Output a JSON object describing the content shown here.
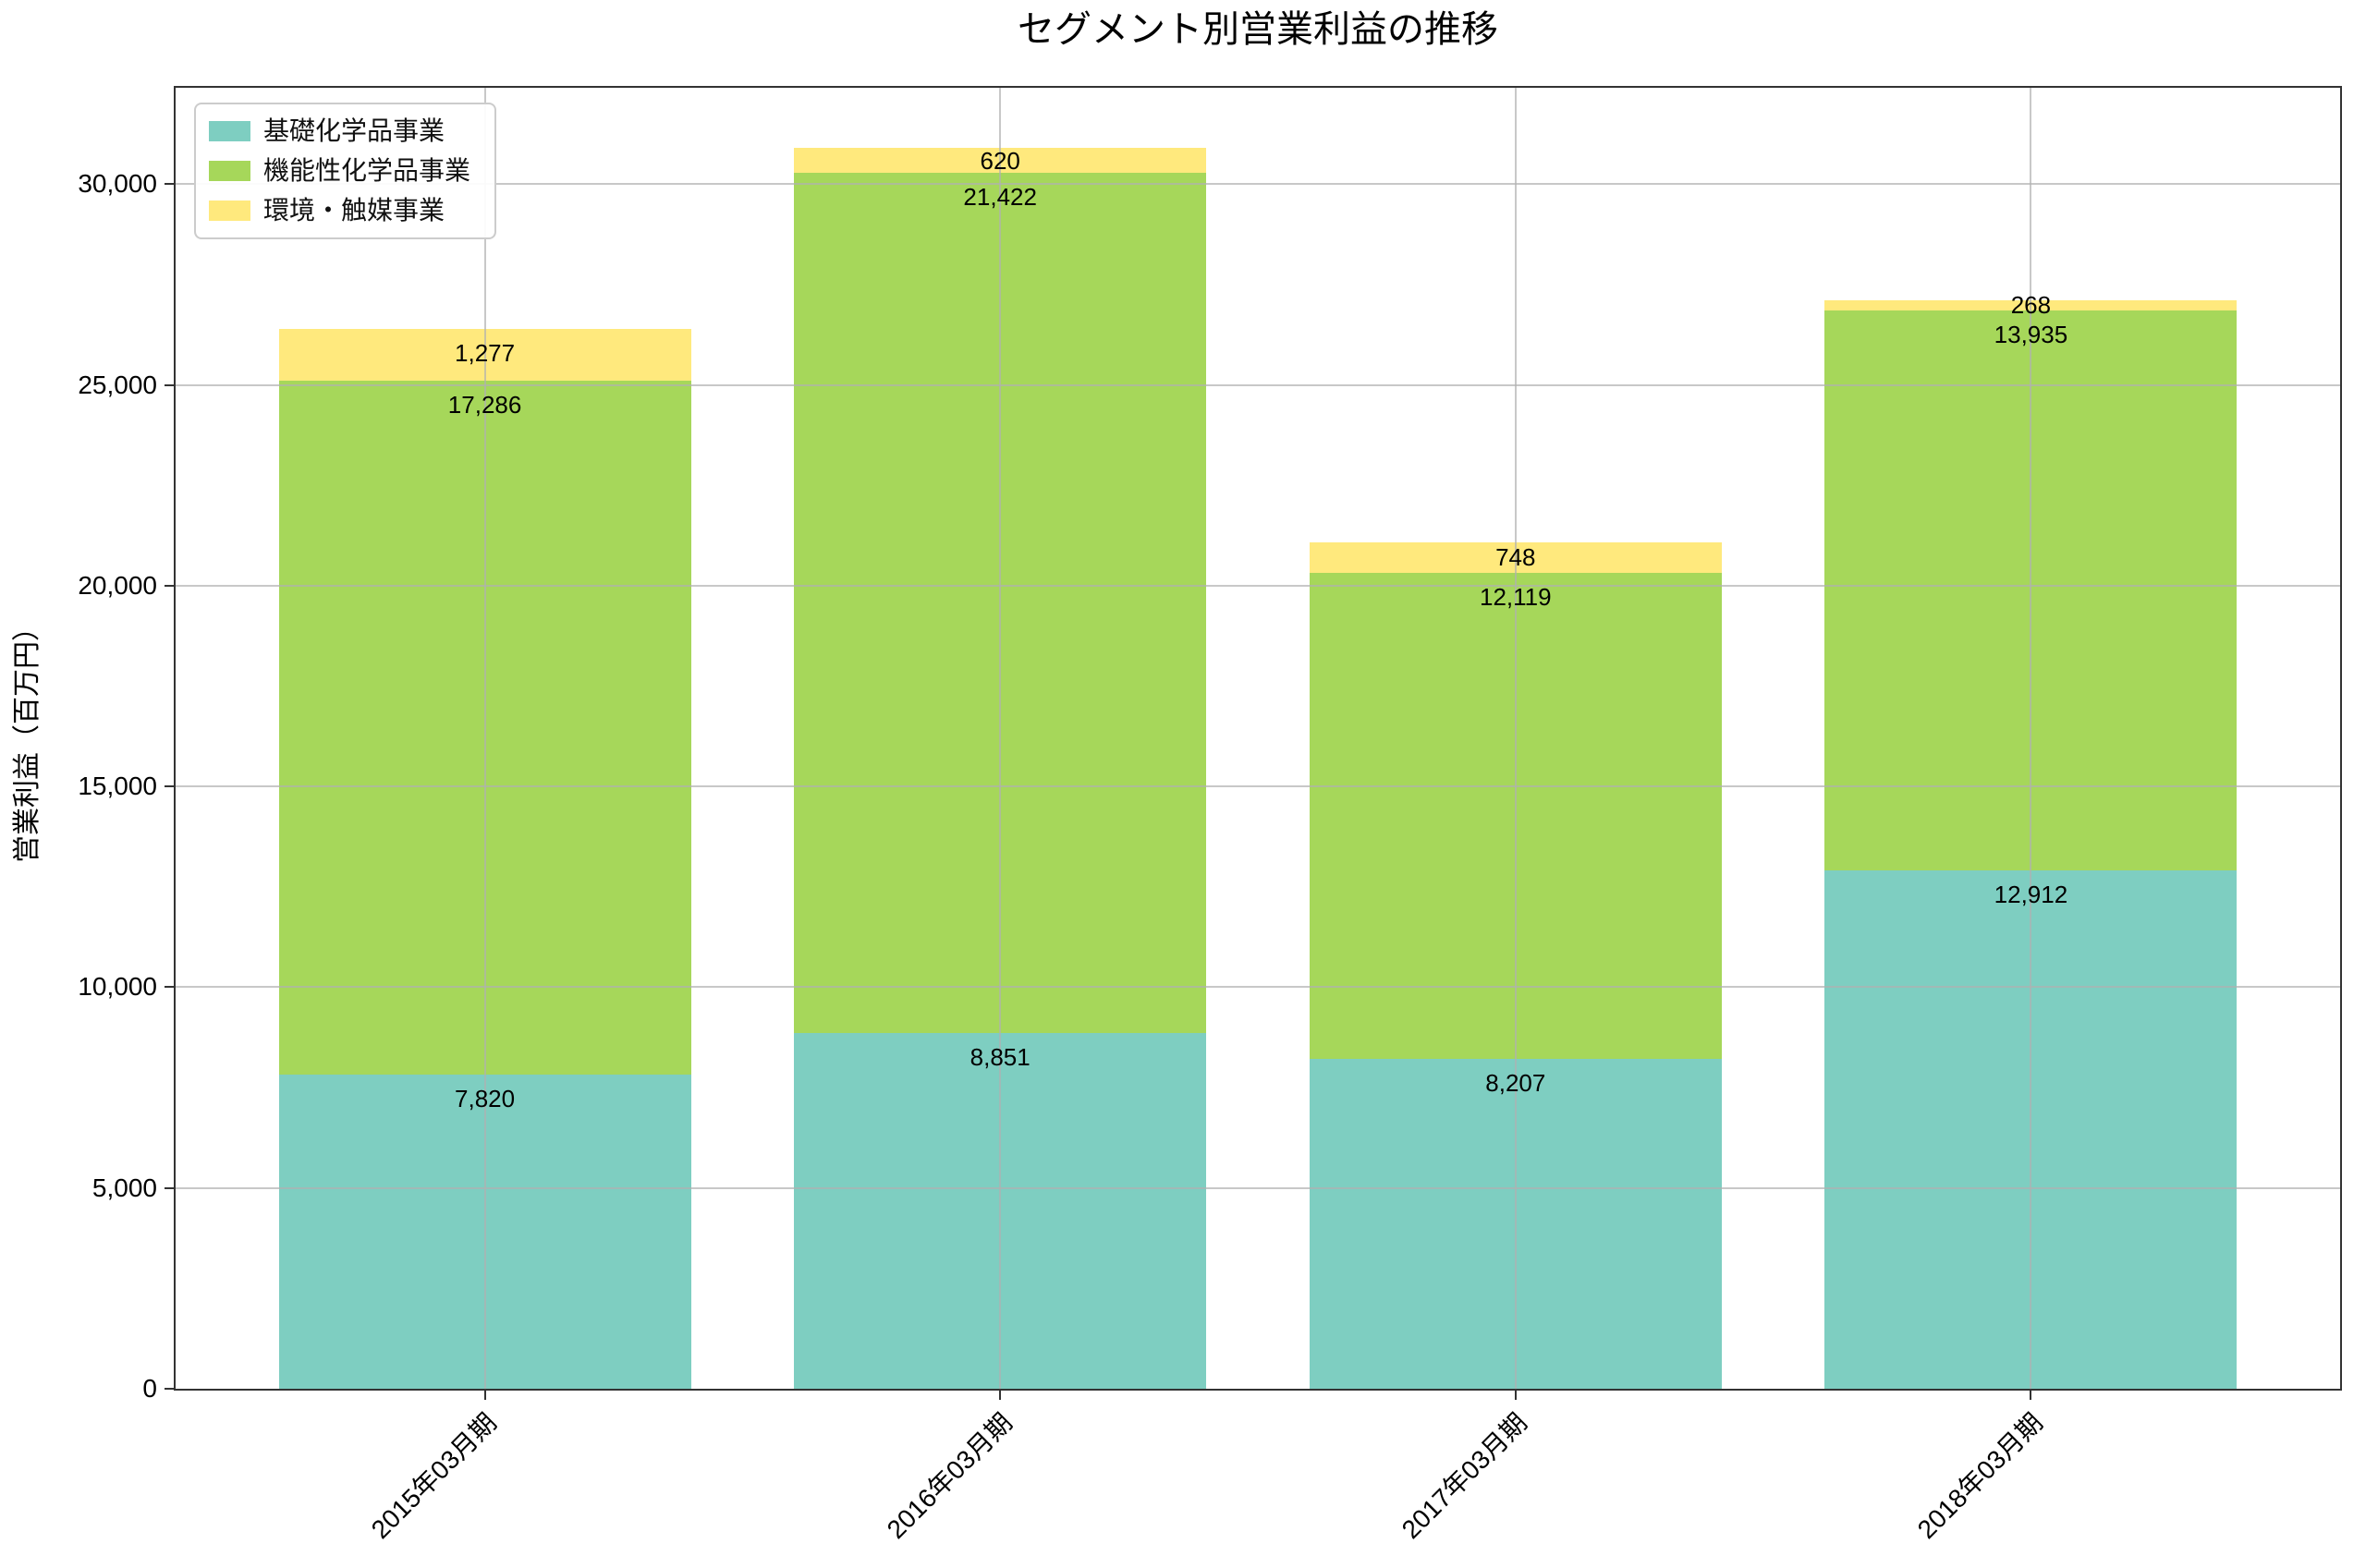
{
  "chart_data": {
    "type": "bar",
    "stacked": true,
    "title": "セグメント別営業利益の推移",
    "ylabel": "営業利益（百万円）",
    "categories": [
      "2015年03月期",
      "2016年03月期",
      "2017年03月期",
      "2018年03月期"
    ],
    "series": [
      {
        "name": "基礎化学品事業",
        "color": "#7ECEC1",
        "values": [
          7820,
          8851,
          8207,
          12912
        ]
      },
      {
        "name": "機能性化学品事業",
        "color": "#A6D75A",
        "values": [
          17286,
          21422,
          12119,
          13935
        ]
      },
      {
        "name": "環境・触媒事業",
        "color": "#FFE97D",
        "values": [
          1277,
          620,
          748,
          268
        ]
      }
    ],
    "yticks": [
      0,
      5000,
      10000,
      15000,
      20000,
      25000,
      30000
    ],
    "ylim": [
      0,
      32400
    ],
    "grid": true,
    "legend_position": "upper-left",
    "grid_color": "#b0b0b0",
    "axis_color": "#333333",
    "background": "#ffffff"
  }
}
